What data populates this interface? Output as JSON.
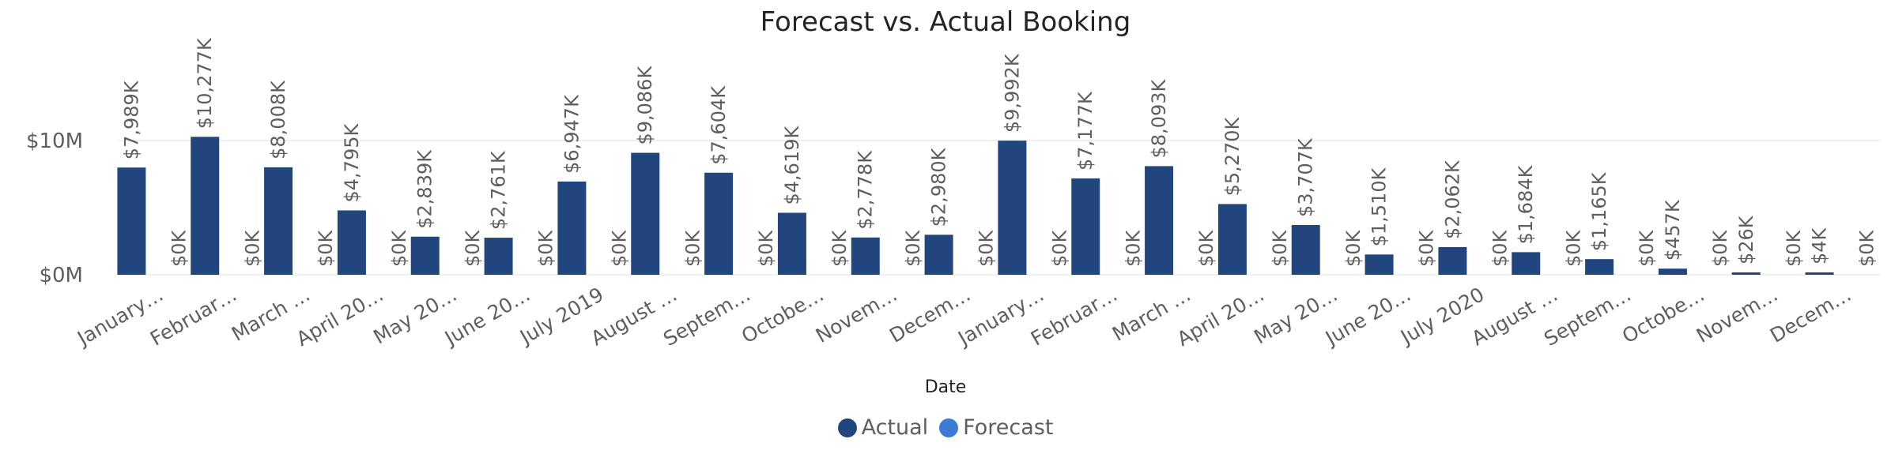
{
  "chart_data": {
    "type": "bar",
    "title": "Forecast vs. Actual Booking",
    "xlabel": "Date",
    "ylabel": "",
    "ylim": [
      0,
      14000000
    ],
    "yticks": [
      {
        "value": 0,
        "label": "$0M"
      },
      {
        "value": 10000000,
        "label": "$10M"
      }
    ],
    "grid": true,
    "legend_position": "bottom-center",
    "categories": [
      "January…",
      "Februar…",
      "March …",
      "April 20…",
      "May 20…",
      "June 20…",
      "July 2019",
      "August …",
      "Septem…",
      "Octobe…",
      "Novem…",
      "Decem…",
      "January…",
      "Februar…",
      "March …",
      "April 20…",
      "May 20…",
      "June 20…",
      "July 2020",
      "August …",
      "Septem…",
      "Octobe…",
      "Novem…",
      "Decem…"
    ],
    "series": [
      {
        "name": "Actual",
        "color": "#21467e",
        "values": [
          7989000,
          10277000,
          8008000,
          4795000,
          2839000,
          2761000,
          6947000,
          9086000,
          7604000,
          4619000,
          2778000,
          2980000,
          9992000,
          7177000,
          8093000,
          5270000,
          3707000,
          1510000,
          2062000,
          1684000,
          1165000,
          457000,
          26000,
          4000
        ],
        "labels": [
          "$7,989K",
          "$10,277K",
          "$8,008K",
          "$4,795K",
          "$2,839K",
          "$2,761K",
          "$6,947K",
          "$9,086K",
          "$7,604K",
          "$4,619K",
          "$2,778K",
          "$2,980K",
          "$9,992K",
          "$7,177K",
          "$8,093K",
          "$5,270K",
          "$3,707K",
          "$1,510K",
          "$2,062K",
          "$1,684K",
          "$1,165K",
          "$457K",
          "$26K",
          "$4K"
        ]
      },
      {
        "name": "Forecast",
        "color": "#3d7bd6",
        "values": [
          0,
          0,
          0,
          0,
          0,
          0,
          0,
          0,
          0,
          0,
          0,
          0,
          0,
          0,
          0,
          0,
          0,
          0,
          0,
          0,
          0,
          0,
          0,
          0
        ],
        "labels": [
          "$0K",
          "$0K",
          "$0K",
          "$0K",
          "$0K",
          "$0K",
          "$0K",
          "$0K",
          "$0K",
          "$0K",
          "$0K",
          "$0K",
          "$0K",
          "$0K",
          "$0K",
          "$0K",
          "$0K",
          "$0K",
          "$0K",
          "$0K",
          "$0K",
          "$0K",
          "$0K",
          "$0K"
        ]
      }
    ]
  }
}
